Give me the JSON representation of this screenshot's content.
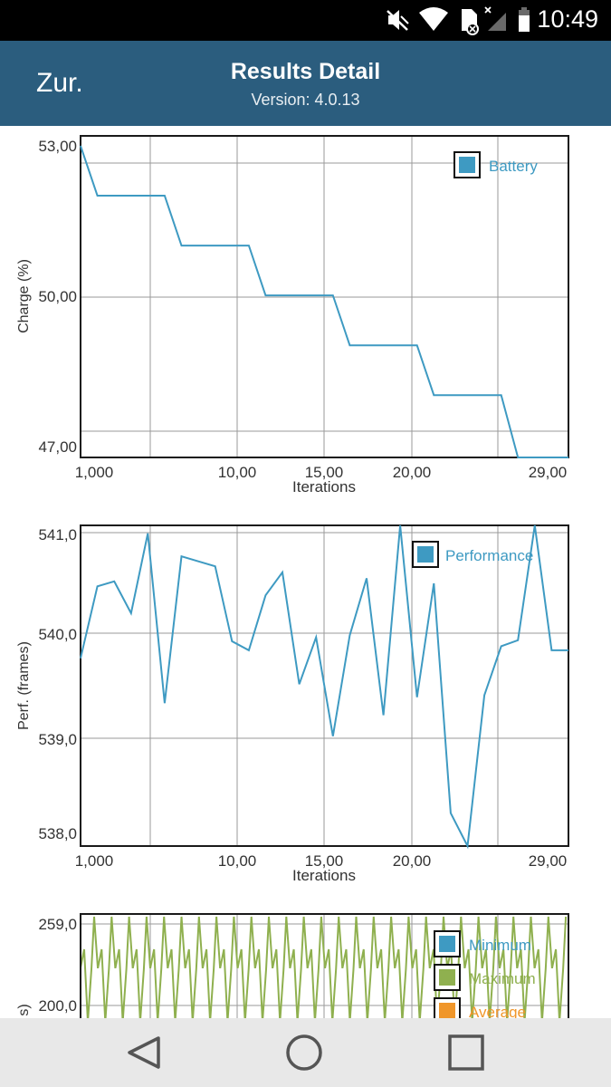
{
  "status_bar": {
    "time": "10:49",
    "icons": [
      "mute-icon",
      "wifi-icon",
      "sd-card-icon",
      "no-signal-icon",
      "battery-icon"
    ]
  },
  "app_bar": {
    "back_label": "Zur.",
    "title": "Results Detail",
    "version": "Version: 4.0.13"
  },
  "charts": {
    "battery": {
      "ylabel": "Charge (%)",
      "xlabel": "Iterations",
      "legend": "Battery",
      "y_ticks": [
        "53,00",
        "50,00",
        "47,00"
      ],
      "x_ticks": [
        "1,000",
        "10,00",
        "15,00",
        "20,00",
        "29,00"
      ]
    },
    "performance": {
      "ylabel": "Perf. (frames)",
      "xlabel": "Iterations",
      "legend": "Performance",
      "y_ticks": [
        "541,0",
        "540,0",
        "539,0",
        "538,0"
      ],
      "x_ticks": [
        "1,000",
        "10,00",
        "15,00",
        "20,00",
        "29,00"
      ]
    },
    "frames": {
      "ylabel": "s)",
      "y_ticks": [
        "259,0",
        "200,0"
      ],
      "legend": [
        "Minimum",
        "Maximum",
        "Average"
      ]
    }
  },
  "chart_data": [
    {
      "type": "line",
      "title": "",
      "xlabel": "Iterations",
      "ylabel": "Charge (%)",
      "xlim": [
        0,
        29
      ],
      "ylim": [
        46.75,
        53.2
      ],
      "legend_position": "top-right",
      "grid": true,
      "series": [
        {
          "name": "Battery",
          "color": "#3e9ac2",
          "x": [
            0,
            1,
            5,
            6,
            10,
            11,
            15,
            16,
            20,
            21,
            25,
            26,
            29
          ],
          "y": [
            53.0,
            52.0,
            52.0,
            51.0,
            51.0,
            50.0,
            50.0,
            49.0,
            49.0,
            48.0,
            48.0,
            46.75,
            46.75
          ]
        }
      ]
    },
    {
      "type": "line",
      "title": "",
      "xlabel": "Iterations",
      "ylabel": "Perf. (frames)",
      "xlim": [
        0,
        29
      ],
      "ylim": [
        537.87,
        541.08
      ],
      "legend_position": "top-right",
      "grid": true,
      "series": [
        {
          "name": "Performance",
          "color": "#3e9ac2",
          "x": [
            0,
            1,
            2,
            3,
            4,
            5,
            6,
            7,
            8,
            9,
            10,
            11,
            12,
            13,
            14,
            15,
            16,
            17,
            18,
            19,
            20,
            21,
            22,
            23,
            24,
            25,
            26,
            27,
            28,
            29
          ],
          "y": [
            539.75,
            540.47,
            540.52,
            540.2,
            541.0,
            539.3,
            540.77,
            540.72,
            540.67,
            539.92,
            539.83,
            540.38,
            540.61,
            539.49,
            539.96,
            538.97,
            539.98,
            540.55,
            539.18,
            541.08,
            539.36,
            540.5,
            538.2,
            537.87,
            539.38,
            539.87,
            539.93,
            541.08,
            539.83,
            539.83
          ]
        }
      ]
    },
    {
      "type": "line",
      "title": "",
      "ylabel": "s)",
      "legend_position": "top-right",
      "grid": true,
      "series": [
        {
          "name": "Minimum",
          "color": "#3e9ac2"
        },
        {
          "name": "Maximum",
          "color": "#8fb04f"
        },
        {
          "name": "Average",
          "color": "#f0962a"
        }
      ]
    }
  ],
  "nav_bar": {
    "icons": [
      "back-triangle-icon",
      "home-circle-icon",
      "recents-square-icon"
    ]
  },
  "colors": {
    "status_bar": "#000000",
    "app_bar": "#2b5d7e",
    "series_blue": "#3e9ac2",
    "series_green": "#8fb04f",
    "series_orange": "#f0962a",
    "nav_bar": "#e8e8e8"
  }
}
